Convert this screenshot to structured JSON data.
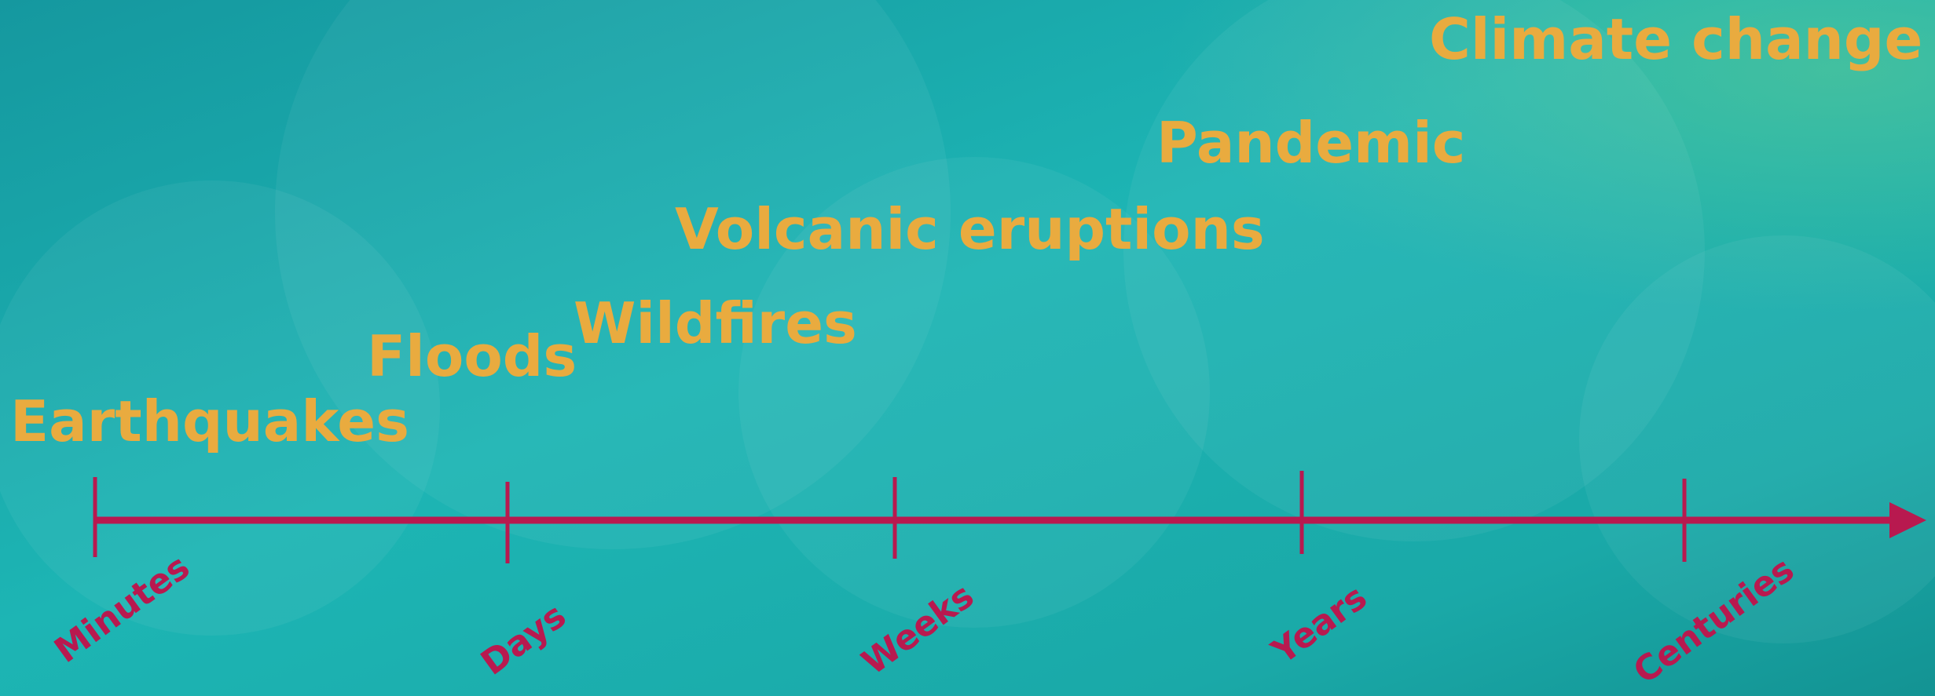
{
  "events": [
    "Earthquakes",
    "Floods",
    "Wildfires",
    "Volcanic eruptions",
    "Pandemic",
    "Climate change"
  ],
  "timeline": {
    "labels": [
      "Minutes",
      "Days",
      "Weeks",
      "Years",
      "Centuries"
    ]
  }
}
